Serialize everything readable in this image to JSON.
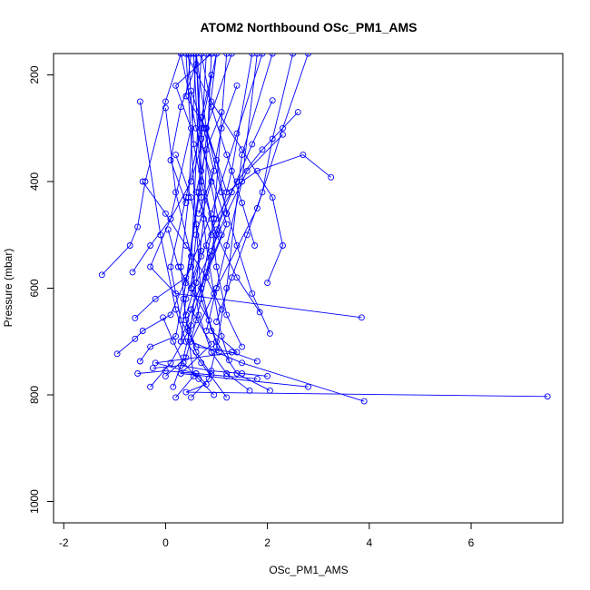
{
  "chart_data": {
    "type": "line",
    "title": "ATOM2 Northbound OSc_PM1_AMS",
    "xlabel": "OSc_PM1_AMS",
    "ylabel": "Pressure (mbar)",
    "xlim": [
      -2.2,
      7.8
    ],
    "ylim": [
      1040,
      160
    ],
    "y_reversed": true,
    "xticks": [
      -2,
      0,
      2,
      4,
      6
    ],
    "yticks": [
      200,
      400,
      600,
      800,
      1000
    ],
    "xtick_labels": [
      "-2",
      "0",
      "2",
      "4",
      "6"
    ],
    "ytick_labels": [
      "200",
      "400",
      "600",
      "800",
      "1000"
    ],
    "grid": false,
    "legend": "none",
    "line_color": "#0000ff",
    "marker": "open-circle",
    "series": [
      {
        "x": [
          7.5,
          0.4,
          0.8,
          0.6,
          -0.2,
          1.4,
          0.9,
          0.7,
          1.2,
          0.6,
          0.3
        ],
        "y": [
          803,
          795,
          780,
          760,
          740,
          720,
          680,
          600,
          480,
          300,
          160
        ]
      },
      {
        "x": [
          3.9,
          1.5,
          0.5,
          1.0,
          1.8,
          2.3,
          2.8
        ],
        "y": [
          812,
          740,
          700,
          600,
          450,
          300,
          160
        ]
      },
      {
        "x": [
          2.8,
          0.3,
          0.9,
          0.5,
          1.1,
          0.7,
          0.6
        ],
        "y": [
          785,
          760,
          705,
          640,
          500,
          320,
          160
        ]
      },
      {
        "x": [
          3.85,
          0.2,
          -0.3,
          0.1,
          0.5,
          0.2,
          0.9
        ],
        "y": [
          655,
          610,
          560,
          470,
          300,
          220,
          160
        ]
      },
      {
        "x": [
          3.25,
          2.7,
          1.8,
          1.2,
          0.8,
          0.4,
          0.5
        ],
        "y": [
          392,
          350,
          380,
          420,
          300,
          240,
          160
        ]
      },
      {
        "x": [
          -1.25,
          -0.7,
          -0.55,
          -0.4,
          0.0,
          0.3
        ],
        "y": [
          575,
          520,
          485,
          400,
          250,
          160
        ]
      },
      {
        "x": [
          -0.95,
          -0.6,
          -0.45,
          0.1,
          0.5,
          0.7
        ],
        "y": [
          723,
          695,
          680,
          650,
          560,
          160
        ]
      },
      {
        "x": [
          -0.5,
          -0.3,
          0.2,
          0.4,
          0.7,
          1.0
        ],
        "y": [
          737,
          710,
          690,
          590,
          400,
          160
        ]
      },
      {
        "x": [
          0.0,
          0.4,
          0.6,
          0.9,
          1.3,
          1.7
        ],
        "y": [
          765,
          730,
          660,
          540,
          380,
          160
        ]
      },
      {
        "x": [
          0.2,
          0.55,
          0.35,
          0.65,
          0.8
        ],
        "y": [
          805,
          765,
          620,
          420,
          160
        ]
      },
      {
        "x": [
          0.5,
          0.85,
          1.0,
          1.2,
          1.5,
          2.1
        ],
        "y": [
          805,
          770,
          710,
          600,
          350,
          160
        ]
      },
      {
        "x": [
          1.2,
          0.7,
          0.4,
          0.2,
          -0.1,
          -0.5
        ],
        "y": [
          805,
          740,
          700,
          640,
          500,
          250
        ]
      },
      {
        "x": [
          1.65,
          1.2,
          0.9,
          0.65,
          0.5,
          0.2,
          0.0
        ],
        "y": [
          792,
          760,
          720,
          650,
          540,
          420,
          262
        ]
      },
      {
        "x": [
          2.05,
          1.4,
          1.0,
          0.7,
          0.6,
          0.4
        ],
        "y": [
          792,
          760,
          700,
          620,
          480,
          160
        ]
      },
      {
        "x": [
          1.8,
          1.3,
          0.6,
          0.3,
          0.1,
          0.4,
          0.7,
          1.0
        ],
        "y": [
          737,
          720,
          710,
          660,
          560,
          430,
          300,
          160
        ]
      },
      {
        "x": [
          -0.6,
          -0.2,
          0.4,
          0.9,
          1.4,
          1.9
        ],
        "y": [
          656,
          620,
          580,
          460,
          310,
          160
        ]
      },
      {
        "x": [
          -0.65,
          -0.3,
          0.1,
          0.5,
          0.8,
          1.3
        ],
        "y": [
          570,
          520,
          470,
          400,
          300,
          160
        ]
      },
      {
        "x": [
          2.6,
          1.9,
          1.4,
          1.0,
          0.7,
          0.5
        ],
        "y": [
          270,
          340,
          400,
          470,
          540,
          600
        ]
      },
      {
        "x": [
          2.3,
          1.6,
          1.2,
          0.9,
          0.6,
          0.4
        ],
        "y": [
          312,
          380,
          460,
          530,
          590,
          650
        ]
      },
      {
        "x": [
          2.1,
          1.7,
          1.3,
          1.0,
          0.8,
          0.5,
          0.3
        ],
        "y": [
          248,
          330,
          420,
          490,
          570,
          640,
          700
        ]
      },
      {
        "x": [
          1.0,
          1.3,
          1.6,
          1.9,
          2.1,
          2.5
        ],
        "y": [
          663,
          580,
          500,
          420,
          320,
          160
        ]
      },
      {
        "x": [
          0.8,
          1.0,
          1.2,
          1.5,
          1.8
        ],
        "y": [
          680,
          600,
          520,
          400,
          160
        ]
      },
      {
        "x": [
          1.5,
          1.2,
          1.0,
          0.9,
          0.7,
          0.6
        ],
        "y": [
          710,
          650,
          560,
          470,
          380,
          160
        ]
      },
      {
        "x": [
          1.25,
          1.1,
          0.95,
          0.8,
          0.7,
          0.55
        ],
        "y": [
          735,
          690,
          610,
          520,
          430,
          160
        ]
      },
      {
        "x": [
          0.15,
          0.35,
          0.5,
          0.6,
          0.75,
          0.9
        ],
        "y": [
          785,
          730,
          670,
          590,
          470,
          160
        ]
      },
      {
        "x": [
          -0.3,
          0.1,
          0.45,
          0.7,
          0.95,
          1.2
        ],
        "y": [
          785,
          740,
          680,
          600,
          470,
          160
        ]
      },
      {
        "x": [
          0.9,
          0.6,
          0.4,
          0.3,
          0.45,
          0.6
        ],
        "y": [
          762,
          720,
          660,
          560,
          430,
          160
        ]
      },
      {
        "x": [
          1.85,
          1.4,
          1.0,
          0.75,
          0.55,
          0.45
        ],
        "y": [
          645,
          580,
          500,
          420,
          330,
          160
        ]
      },
      {
        "x": [
          1.75,
          1.5,
          1.2,
          0.9,
          0.7
        ],
        "y": [
          520,
          440,
          350,
          260,
          160
        ]
      },
      {
        "x": [
          2.05,
          1.7,
          1.4,
          1.1,
          0.8,
          0.6
        ],
        "y": [
          685,
          610,
          520,
          420,
          300,
          160
        ]
      },
      {
        "x": [
          2.0,
          2.3,
          2.1,
          1.5,
          0.9,
          0.4
        ],
        "y": [
          590,
          520,
          430,
          340,
          250,
          160
        ]
      },
      {
        "x": [
          1.4,
          1.1,
          0.9,
          0.6,
          0.5
        ],
        "y": [
          220,
          300,
          400,
          500,
          600
        ]
      },
      {
        "x": [
          0.2,
          0.5,
          0.7,
          0.4,
          0.3
        ],
        "y": [
          350,
          430,
          530,
          620,
          700
        ]
      },
      {
        "x": [
          -0.45,
          0.0,
          0.4,
          0.8,
          1.1
        ],
        "y": [
          400,
          460,
          520,
          580,
          640
        ]
      },
      {
        "x": [
          0.05,
          0.25,
          0.55,
          0.85,
          1.05
        ],
        "y": [
          490,
          560,
          610,
          660,
          720
        ]
      },
      {
        "x": [
          -0.05,
          0.15,
          0.35,
          0.65,
          0.95
        ],
        "y": [
          655,
          700,
          740,
          770,
          800
        ]
      },
      {
        "x": [
          -0.55,
          0.0,
          0.6,
          1.2,
          1.8
        ],
        "y": [
          760,
          755,
          760,
          765,
          770
        ]
      },
      {
        "x": [
          -0.25,
          0.3,
          0.9,
          1.5,
          2.0
        ],
        "y": [
          750,
          745,
          755,
          760,
          765
        ]
      },
      {
        "x": [
          0.6,
          0.3,
          0.1,
          0.4
        ],
        "y": [
          180,
          260,
          360,
          440
        ]
      },
      {
        "x": [
          0.9,
          0.7,
          1.0,
          1.2
        ],
        "y": [
          200,
          280,
          360,
          460
        ]
      },
      {
        "x": [
          1.1,
          0.8,
          0.6,
          0.9
        ],
        "y": [
          270,
          340,
          420,
          500
        ]
      },
      {
        "x": [
          0.5,
          0.75,
          0.95,
          0.65
        ],
        "y": [
          230,
          300,
          380,
          460
        ]
      }
    ]
  }
}
